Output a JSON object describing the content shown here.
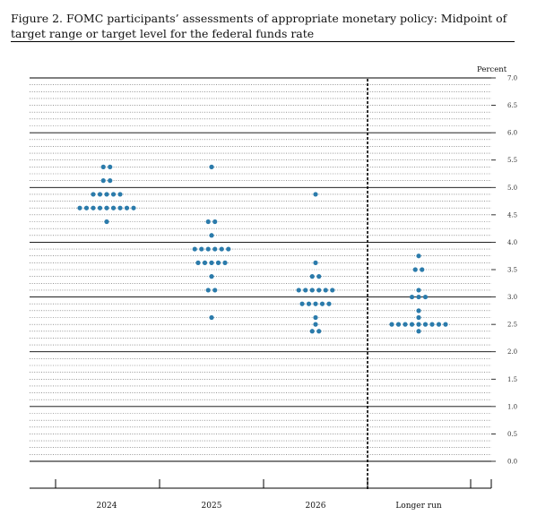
{
  "figure": {
    "title": "Figure 2.  FOMC participants’ assessments of appropriate monetary policy:  Midpoint of target range or target level for the federal funds rate"
  },
  "chart_data": {
    "type": "scatter",
    "subtype": "dot-plot",
    "ylabel": "Percent",
    "ylim": [
      0,
      7.0
    ],
    "ytick_step": 0.5,
    "yticks": [
      "0.0",
      "0.5",
      "1.0",
      "1.5",
      "2.0",
      "2.5",
      "3.0",
      "3.5",
      "4.0",
      "4.5",
      "5.0",
      "5.5",
      "6.0",
      "6.5",
      "7.0"
    ],
    "grid": true,
    "dot_color": "#2b7bab",
    "categories": [
      "2024",
      "2025",
      "2026",
      "Longer run"
    ],
    "dots": [
      {
        "x": "2024",
        "y": 5.375,
        "count": 2
      },
      {
        "x": "2024",
        "y": 5.125,
        "count": 2
      },
      {
        "x": "2024",
        "y": 4.875,
        "count": 5
      },
      {
        "x": "2024",
        "y": 4.625,
        "count": 9
      },
      {
        "x": "2024",
        "y": 4.375,
        "count": 1
      },
      {
        "x": "2025",
        "y": 5.375,
        "count": 1
      },
      {
        "x": "2025",
        "y": 4.375,
        "count": 2
      },
      {
        "x": "2025",
        "y": 4.125,
        "count": 1
      },
      {
        "x": "2025",
        "y": 3.875,
        "count": 6
      },
      {
        "x": "2025",
        "y": 3.625,
        "count": 5
      },
      {
        "x": "2025",
        "y": 3.375,
        "count": 1
      },
      {
        "x": "2025",
        "y": 3.125,
        "count": 2
      },
      {
        "x": "2025",
        "y": 2.625,
        "count": 1
      },
      {
        "x": "2026",
        "y": 4.875,
        "count": 1
      },
      {
        "x": "2026",
        "y": 3.625,
        "count": 1
      },
      {
        "x": "2026",
        "y": 3.375,
        "count": 2
      },
      {
        "x": "2026",
        "y": 3.125,
        "count": 6
      },
      {
        "x": "2026",
        "y": 2.875,
        "count": 5
      },
      {
        "x": "2026",
        "y": 2.625,
        "count": 1
      },
      {
        "x": "2026",
        "y": 2.5,
        "count": 1
      },
      {
        "x": "2026",
        "y": 2.375,
        "count": 2
      },
      {
        "x": "Longer run",
        "y": 3.75,
        "count": 1
      },
      {
        "x": "Longer run",
        "y": 3.5,
        "count": 2
      },
      {
        "x": "Longer run",
        "y": 3.125,
        "count": 1
      },
      {
        "x": "Longer run",
        "y": 3.0,
        "count": 3
      },
      {
        "x": "Longer run",
        "y": 2.75,
        "count": 1
      },
      {
        "x": "Longer run",
        "y": 2.625,
        "count": 1
      },
      {
        "x": "Longer run",
        "y": 2.5,
        "count": 9
      },
      {
        "x": "Longer run",
        "y": 2.375,
        "count": 1
      }
    ]
  }
}
